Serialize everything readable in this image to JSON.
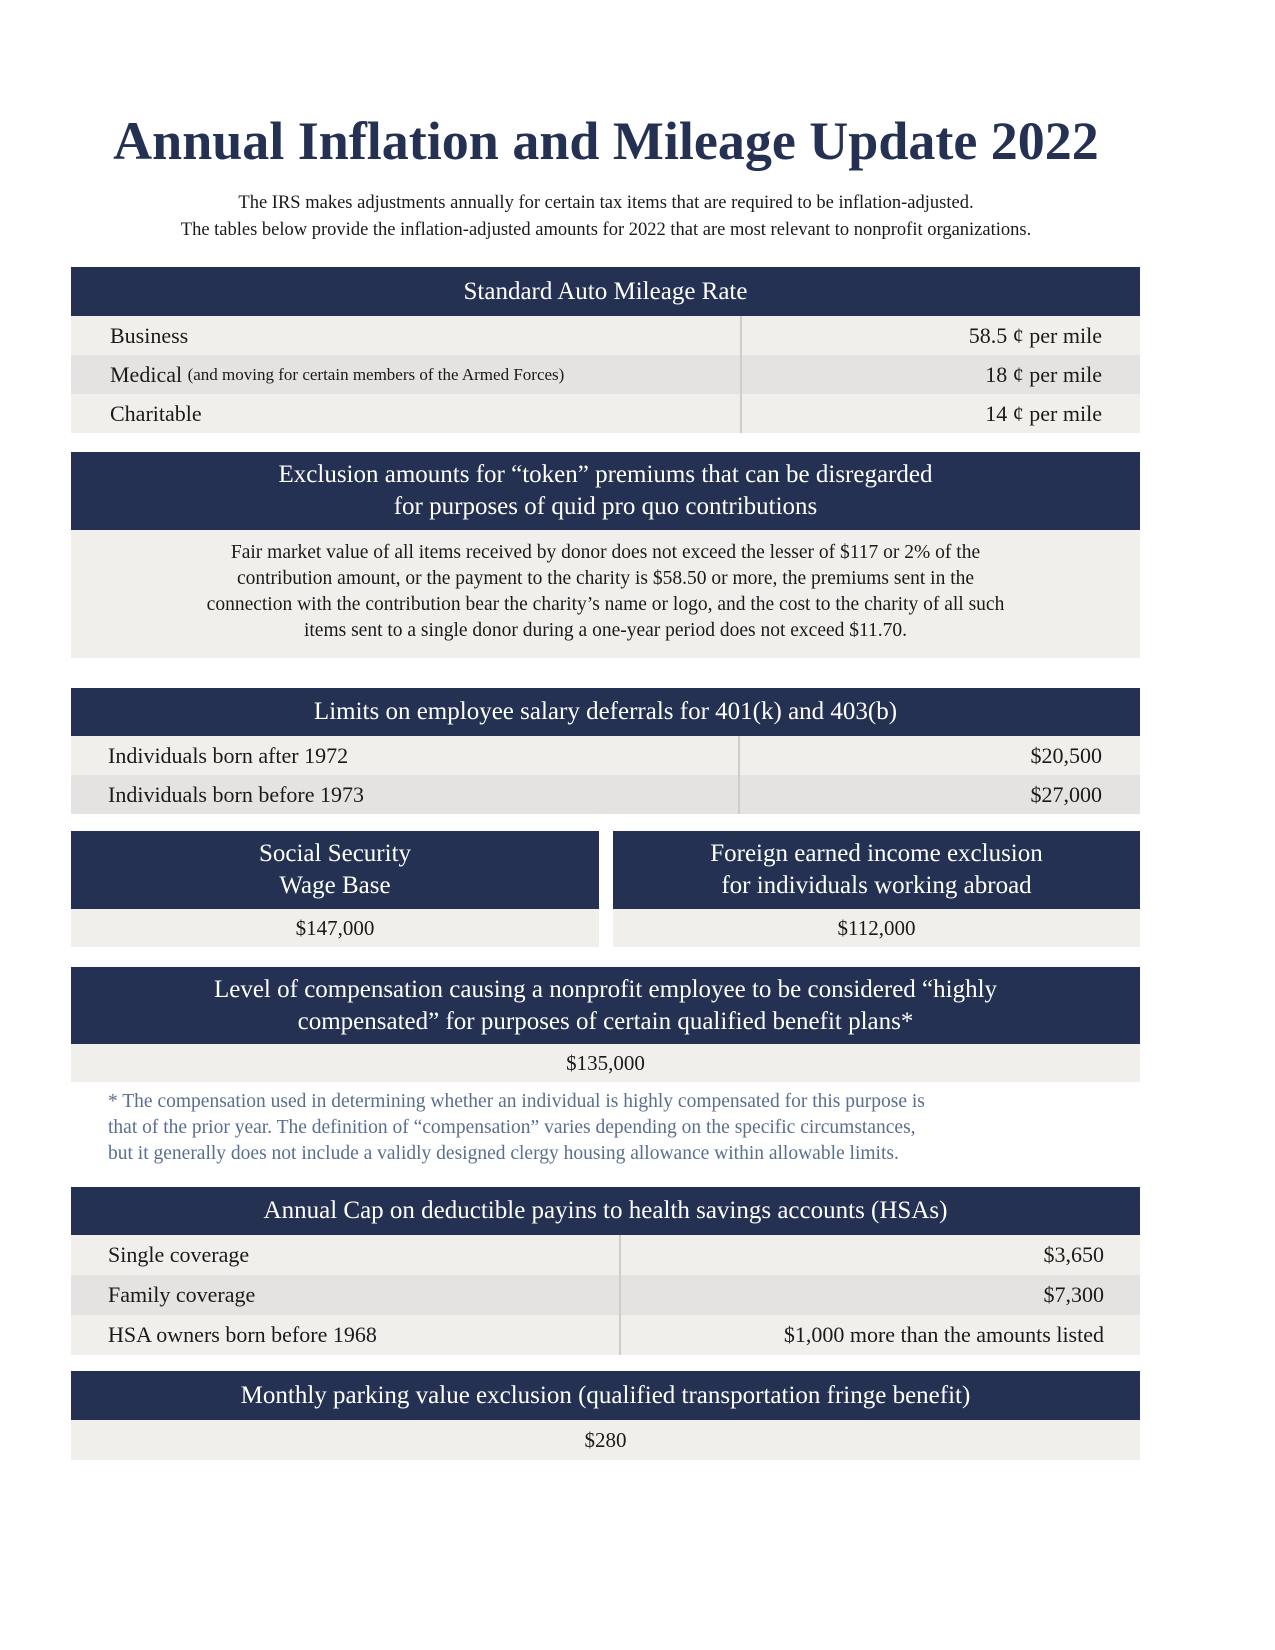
{
  "title": "Annual Inflation and Mileage Update 2022",
  "intro": [
    "The IRS makes adjustments annually for certain tax items that are required to be inflation-adjusted.",
    "The tables below provide the inflation-adjusted amounts for 2022 that are most relevant to nonprofit organizations."
  ],
  "colors": {
    "header": "#243152",
    "row": "#f1efeb",
    "row_alt": "#e4e3e1",
    "note": "#5a6e8e"
  },
  "mileage": {
    "header": "Standard Auto Mileage Rate",
    "rows": [
      {
        "label": "Business",
        "note": "",
        "value": "58.5 ¢ per mile"
      },
      {
        "label": "Medical",
        "note": "(and moving for certain members of the Armed Forces)",
        "value": "18 ¢ per mile"
      },
      {
        "label": "Charitable",
        "note": "",
        "value": "14 ¢ per mile"
      }
    ]
  },
  "token": {
    "header": [
      "Exclusion amounts for “token” premiums that can be disregarded",
      "for purposes of quid pro quo contributions"
    ],
    "body": [
      "Fair market value of all items received by donor does not exceed the lesser of $117 or 2% of the",
      "contribution amount, or the payment to the charity is $58.50 or more, the premiums sent in the",
      "connection with the contribution bear the charity’s name or logo, and the cost to the charity of all such",
      "items sent to a single donor during a one-year period does not exceed $11.70."
    ]
  },
  "deferrals": {
    "header": "Limits on employee salary deferrals for 401(k) and 403(b)",
    "rows": [
      {
        "label": "Individuals born after 1972",
        "value": "$20,500"
      },
      {
        "label": "Individuals born before 1973",
        "value": "$27,000"
      }
    ]
  },
  "ss": {
    "header": [
      "Social Security",
      "Wage Base"
    ],
    "value": "$147,000"
  },
  "foreign": {
    "header": [
      "Foreign earned income exclusion",
      "for individuals working abroad"
    ],
    "value": "$112,000"
  },
  "hce": {
    "header": [
      "Level of compensation causing a nonprofit employee to be considered “highly",
      "compensated” for purposes of certain qualified benefit plans*"
    ],
    "value": "$135,000",
    "note": [
      "* The compensation used in determining whether an individual is highly compensated for this purpose is",
      "that of the prior year.  The definition of “compensation” varies depending on the specific circumstances,",
      "but it generally does not include a validly designed clergy housing allowance within allowable limits."
    ]
  },
  "hsa": {
    "header": "Annual Cap on deductible payins to health savings accounts (HSAs)",
    "rows": [
      {
        "label": "Single coverage",
        "value": "$3,650"
      },
      {
        "label": "Family coverage",
        "value": "$7,300"
      },
      {
        "label": "HSA owners born before 1968",
        "value": "$1,000 more than the amounts listed"
      }
    ]
  },
  "parking": {
    "header": "Monthly parking value exclusion (qualified transportation fringe benefit)",
    "value": "$280"
  }
}
